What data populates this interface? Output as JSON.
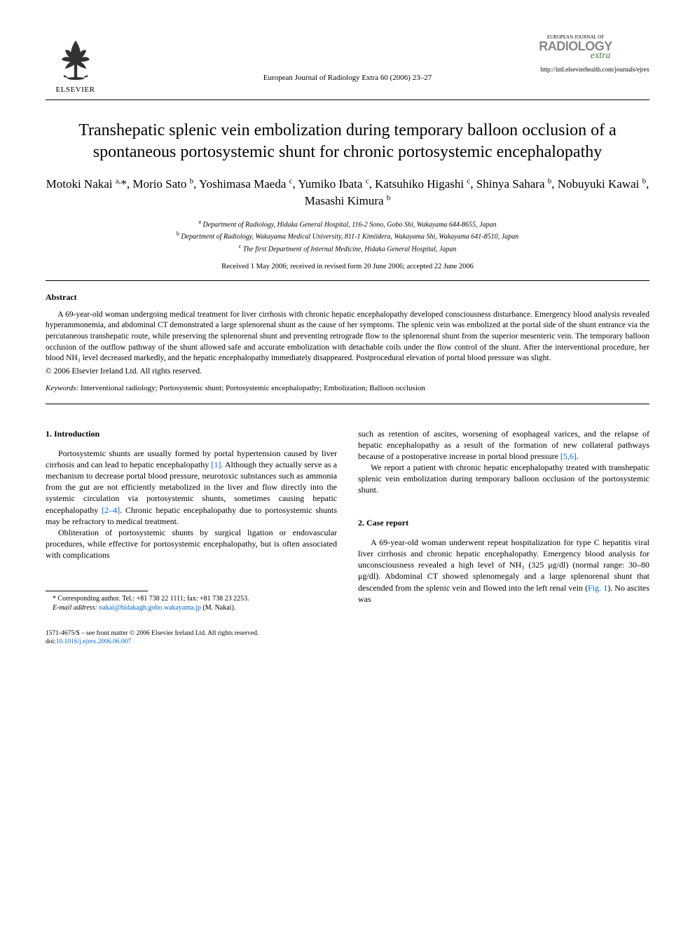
{
  "header": {
    "elsevier_text": "ELSEVIER",
    "journal_ref": "European Journal of Radiology Extra 60 (2006) 23–27",
    "journal_logo_top": "EUROPEAN JOURNAL OF",
    "journal_logo_main": "RADIOLOGY",
    "journal_logo_extra": "extra",
    "journal_url": "http://intl.elsevierhealth.com/journals/ejrex"
  },
  "title": "Transhepatic splenic vein embolization during temporary balloon occlusion of a spontaneous portosystemic shunt for chronic portosystemic encephalopathy",
  "authors_html": "Motoki Nakai <sup>a,</sup>*, Morio Sato <sup>b</sup>, Yoshimasa Maeda <sup>c</sup>, Yumiko Ibata <sup>c</sup>, Katsuhiko Higashi <sup>c</sup>, Shinya Sahara <sup>b</sup>, Nobuyuki Kawai <sup>b</sup>, Masashi Kimura <sup>b</sup>",
  "affiliations": [
    {
      "sup": "a",
      "text": "Department of Radiology, Hidaka General Hospital, 116-2 Sono, Gobo Shi, Wakayama 644-8655, Japan"
    },
    {
      "sup": "b",
      "text": "Department of Radiology, Wakayama Medical University, 811-1 Kimiidera, Wakayama Shi, Wakayama 641-8510, Japan"
    },
    {
      "sup": "c",
      "text": "The first Department of Internal Medicine, Hidaka General Hospital, Japan"
    }
  ],
  "dates": "Received 1 May 2006; received in revised form 20 June 2006; accepted 22 June 2006",
  "abstract": {
    "heading": "Abstract",
    "body": "A 69-year-old woman undergoing medical treatment for liver cirrhosis with chronic hepatic encephalopathy developed consciousness disturbance. Emergency blood analysis revealed hyperammonemia, and abdominal CT demonstrated a large splenorenal shunt as the cause of her symptoms. The splenic vein was embolized at the portal side of the shunt entrance via the percutaneous transhepatic route, while preserving the splenorenal shunt and preventing retrograde flow to the splenorenal shunt from the superior mesenteric vein. The temporary balloon occlusion of the outflow pathway of the shunt allowed safe and accurate embolization with detachable coils under the flow control of the shunt. After the interventional procedure, her blood NH₃ level decreased markedly, and the hepatic encephalopathy immediately disappeared. Postprocedural elevation of portal blood pressure was slight.",
    "copyright": "© 2006 Elsevier Ireland Ltd. All rights reserved."
  },
  "keywords": {
    "label": "Keywords:",
    "text": " Interventional radiology; Portosystemic shunt; Portosystemic encephalopathy; Embolization; Balloon occlusion"
  },
  "body": {
    "col1": {
      "heading": "1. Introduction",
      "p1_pre": "Portosystemic shunts are usually formed by portal hypertension caused by liver cirrhosis and can lead to hepatic encephalopathy ",
      "p1_ref": "[1]",
      "p1_mid": ". Although they actually serve as a mechanism to decrease portal blood pressure, neurotoxic substances such as ammonia from the gut are not efficiently metabolized in the liver and flow directly into the systemic circulation via portosystemic shunts, sometimes causing hepatic encephalopathy ",
      "p1_ref2": "[2–4]",
      "p1_post": ". Chronic hepatic encephalopathy due to portosystemic shunts may be refractory to medical treatment.",
      "p2": "Obliteration of portosystemic shunts by surgical ligation or endovascular procedures, while effective for portosystemic encephalopathy, but is often associated with complications"
    },
    "col2": {
      "p1_pre": "such as retention of ascites, worsening of esophageal varices, and the relapse of hepatic encephalopathy as a result of the formation of new collateral pathways because of a postoperative increase in portal blood pressure ",
      "p1_ref": "[5,6]",
      "p1_post": ".",
      "p2": "We report a patient with chronic hepatic encephalopathy treated with transhepatic splenic vein embolization during temporary balloon occlusion of the portosystemic shunt.",
      "heading": "2. Case report",
      "p3_pre": "A 69-year-old woman underwent repeat hospitalization for type C hepatitis viral liver cirrhosis and chronic hepatic encephalopathy. Emergency blood analysis for unconsciousness revealed a high level of NH₃ (325 μg/dl) (normal range: 30–80 μg/dl). Abdominal CT showed splenomegaly and a large splenorenal shunt that descended from the splenic vein and flowed into the left renal vein (",
      "p3_ref": "Fig. 1",
      "p3_post": "). No ascites was"
    }
  },
  "footnotes": {
    "corr": "* Corresponding author. Tel.: +81 738 22 1111; fax: +81 738 23 2253.",
    "email_label": "E-mail address: ",
    "email": "nakai@hidakagh.gobo.wakayama.jp",
    "email_who": " (M. Nakai)."
  },
  "bottom": {
    "line1": "1571-4675/$ – see front matter © 2006 Elsevier Ireland Ltd. All rights reserved.",
    "line2_pre": "doi:",
    "doi": "10.1016/j.ejrex.2006.06.007"
  },
  "colors": {
    "link": "#0066cc",
    "text": "#000000",
    "logo_gray": "#888888",
    "logo_green": "#4a7a3a"
  }
}
